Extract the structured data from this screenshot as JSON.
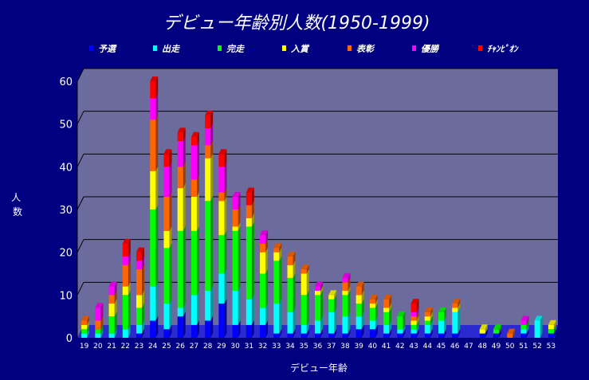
{
  "chart_data": {
    "type": "bar",
    "stacked": true,
    "title": "デビュー年齢別人数(1950-1999)",
    "xlabel": "デビュー年齢",
    "ylabel": "人数",
    "ylim": [
      0,
      60
    ],
    "yticks": [
      0,
      10,
      20,
      30,
      40,
      50,
      60
    ],
    "grid": true,
    "legend_position": "top",
    "categories": [
      "19",
      "20",
      "21",
      "22",
      "23",
      "24",
      "25",
      "26",
      "27",
      "28",
      "29",
      "30",
      "31",
      "32",
      "33",
      "34",
      "35",
      "36",
      "37",
      "38",
      "39",
      "40",
      "41",
      "42",
      "43",
      "44",
      "45",
      "46",
      "47",
      "48",
      "49",
      "50",
      "51",
      "52",
      "53"
    ],
    "series": [
      {
        "name": "予選",
        "color": "#0000ff",
        "values": [
          0,
          0,
          0,
          0,
          1,
          4,
          2,
          5,
          3,
          4,
          8,
          3,
          3,
          3,
          1,
          1,
          1,
          1,
          1,
          1,
          2,
          2,
          1,
          1,
          1,
          1,
          1,
          1,
          0,
          1,
          1,
          0,
          1,
          0,
          1
        ]
      },
      {
        "name": "出走",
        "color": "#00ffff",
        "values": [
          1,
          1,
          1,
          2,
          2,
          8,
          6,
          2,
          7,
          7,
          7,
          8,
          6,
          4,
          7,
          5,
          2,
          3,
          5,
          4,
          3,
          2,
          2,
          1,
          1,
          2,
          3,
          5,
          0,
          0,
          0,
          0,
          1,
          4,
          0
        ]
      },
      {
        "name": "完走",
        "color": "#00ff00",
        "values": [
          1,
          1,
          4,
          8,
          4,
          18,
          13,
          18,
          15,
          21,
          9,
          14,
          17,
          8,
          10,
          8,
          7,
          6,
          3,
          5,
          3,
          3,
          3,
          3,
          1,
          1,
          2,
          0,
          0,
          0,
          1,
          0,
          1,
          0,
          1
        ]
      },
      {
        "name": "入賞",
        "color": "#ffff00",
        "values": [
          1,
          0,
          3,
          2,
          3,
          9,
          4,
          10,
          8,
          10,
          8,
          1,
          2,
          5,
          2,
          3,
          5,
          1,
          1,
          1,
          2,
          1,
          1,
          0,
          1,
          1,
          0,
          1,
          0,
          1,
          0,
          0,
          0,
          0,
          1
        ]
      },
      {
        "name": "表彰",
        "color": "#ff6600",
        "values": [
          1,
          2,
          2,
          5,
          6,
          12,
          8,
          5,
          4,
          3,
          2,
          4,
          3,
          2,
          1,
          2,
          1,
          0,
          0,
          2,
          2,
          1,
          2,
          0,
          1,
          1,
          0,
          1,
          0,
          0,
          0,
          1,
          0,
          0,
          0
        ]
      },
      {
        "name": "優勝",
        "color": "#ff00ff",
        "values": [
          0,
          3,
          2,
          2,
          2,
          5,
          7,
          6,
          8,
          4,
          6,
          3,
          0,
          2,
          0,
          0,
          0,
          1,
          0,
          1,
          0,
          0,
          0,
          0,
          1,
          0,
          0,
          0,
          0,
          0,
          0,
          0,
          1,
          0,
          0
        ]
      },
      {
        "name": "ﾁｬﾝﾋﾟｵﾝ",
        "color": "#ff0000",
        "values": [
          0,
          0,
          0,
          3,
          2,
          4,
          3,
          2,
          2,
          3,
          3,
          0,
          3,
          0,
          0,
          0,
          0,
          0,
          0,
          0,
          0,
          0,
          0,
          0,
          2,
          0,
          0,
          0,
          0,
          0,
          0,
          0,
          0,
          0,
          0
        ]
      }
    ]
  }
}
